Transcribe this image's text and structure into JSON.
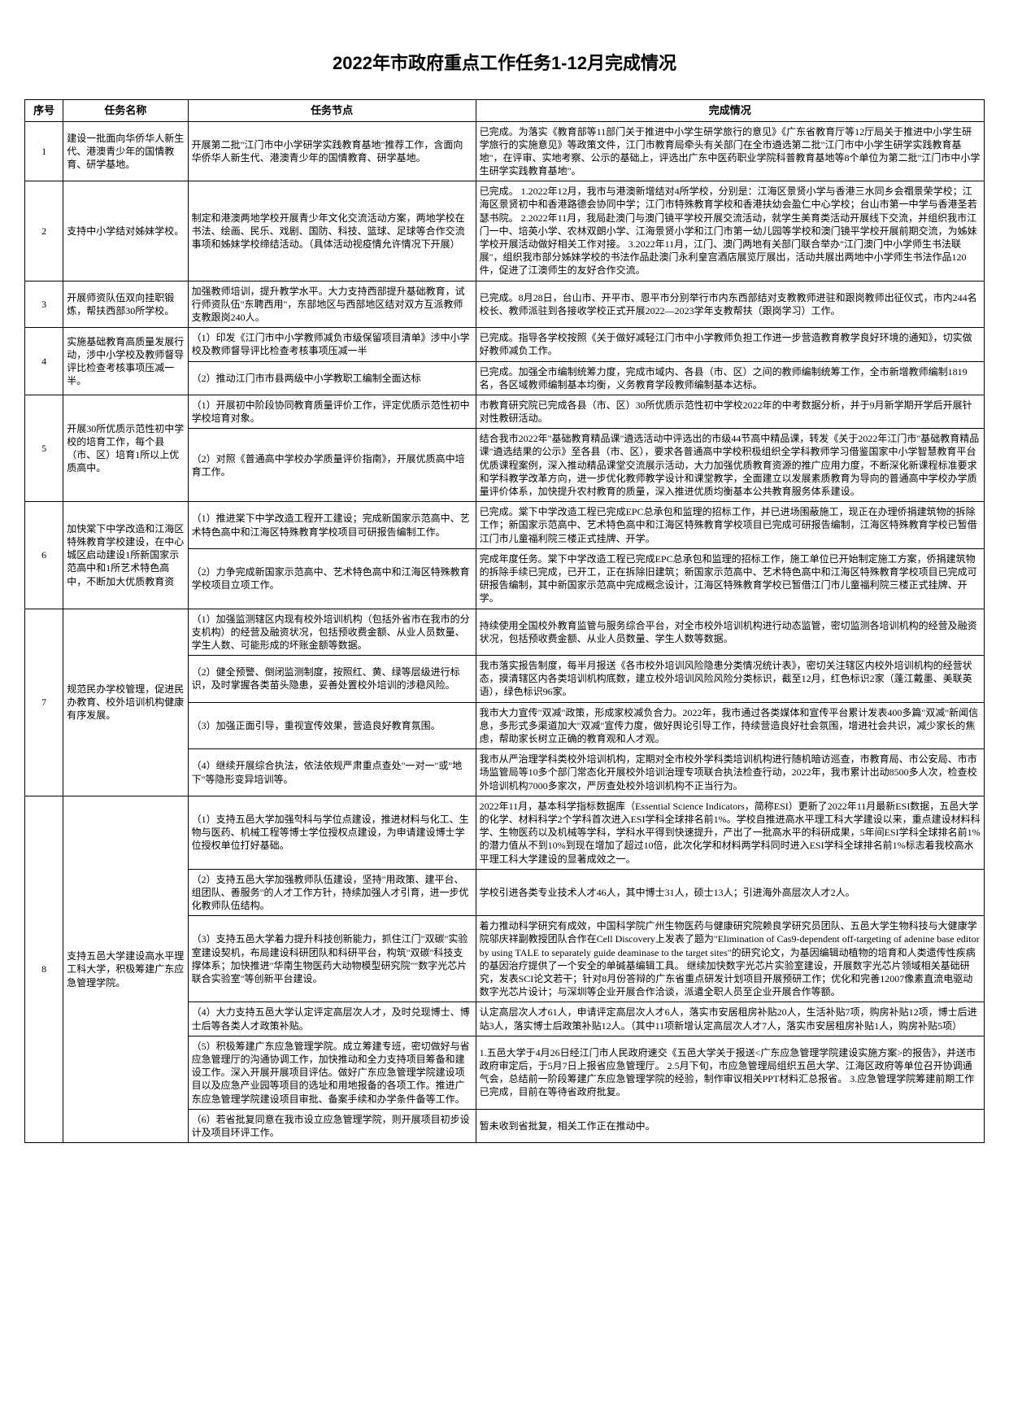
{
  "title": "2022年市政府重点工作任务1-12月完成情况",
  "headers": {
    "seq": "序号",
    "task": "任务名称",
    "node": "任务节点",
    "status": "完成情况"
  },
  "rows": [
    {
      "seq": "1",
      "task": "建设一批面向华侨华人新生代、港澳青少年的国情教育、研学基地。",
      "nodes": [
        {
          "node": "开展第二批\"江门市中小学研学实践教育基地\"推荐工作，含面向华侨华人新生代、港澳青少年的国情教育、研学基地。",
          "status": "已完成。为落实《教育部等11部门关于推进中小学生研学旅行的意见》《广东省教育厅等12厅局关于推进中小学生研学旅行的实施意见》等政策文件，江门市教育局牵头有关部门在全市遴选第二批\"江门市中小学生研学实践教育基地\"，在评审、实地考察、公示的基础上，评选出广东中医药职业学院科普教育基地等8个单位为第二批\"江门市中小学生研学实践教育基地\"。"
        }
      ]
    },
    {
      "seq": "2",
      "task": "支持中小学结对姊妹学校。",
      "nodes": [
        {
          "node": "制定和港澳两地学校开展青少年文化交流活动方案，两地学校在书法、绘画、民乐、戏剧、国防、科技、篮球、足球等合作交流事项和姊妹学校缔结活动。（具体活动视疫情允许情况下开展）",
          "status": "已完成。\n1.2022年12月，我市与港澳新增结对4所学校，分别是：江海区景贤小学与香港三水同乡会禤景荣学校；江海区景贤初中和香港路德会协同中学；江门市特殊教育学校和香港扶幼会盈仁中心学校；台山市第一中学与香港圣若瑟书院。\n2.2022年11月，我局赴澳门与澳门镜平学校开展交流活动，就学生美育类活动开展线下交流，并组织我市江门一中、培英小学、农林双朗小学、江海景贤小学和江门市第一幼儿园等学校和澳门镜平学校开展前期交流，为姊妹学校开展活动做好相关工作对接。\n3.2022年11月，江门、澳门两地有关部门联合举办\"江门澳门中小学师生书法联展\"，组织我市部分姊妹学校的书法作品赴澳门永利皇宫酒店展览厅展出，活动共展出两地中小学师生书法作品120件，促进了江澳师生的友好合作交流。"
        }
      ]
    },
    {
      "seq": "3",
      "task": "开展师资队伍双向挂职锻炼，帮扶西部30所学校。",
      "nodes": [
        {
          "node": "加强教师培训，提升教学水平。大力支持西部提升基础教育，试行师资队伍\"东聘西用\"，东部地区与西部地区结对双方互派教师支教跟岗240人。",
          "status": "已完成。8月28日，台山市、开平市、恩平市分别举行市内东西部结对支教教师进驻和跟岗教师出征仪式，市内244名校长、教师派驻到各接收学校正式开展2022—2023学年支教帮扶（跟岗学习）工作。"
        }
      ]
    },
    {
      "seq": "4",
      "task": "实施基础教育高质量发展行动，涉中小学校及教师督导评比检查考核事项压减一半。",
      "nodes": [
        {
          "node": "（1）印发《江门市中小学教师减负市级保留项目清单》涉中小学校及教师督导评比检查考核事项压减一半",
          "status": "已完成。指导各学校按照《关于做好减轻江门市中小学教师负担工作进一步营造教育教学良好环境的通知》，切实做好教师减负工作。"
        },
        {
          "node": "（2）推动江门市市县两级中小学教职工编制全面达标",
          "status": "已完成。加强全市编制统筹力度，完成市域内、各县（市、区）之间的教师编制统筹工作，全市新增教师编制1819名，各区域教师编制基本均衡，义务教育学段教师编制基本达标。"
        }
      ]
    },
    {
      "seq": "5",
      "task": "开展30所优质示范性初中学校的培育工作，每个县（市、区）培育1所以上优质高中。",
      "nodes": [
        {
          "node": "（1）开展初中阶段协同教育质量评价工作，评定优质示范性初中学校培育对象。",
          "status": "市教育研究院已完成各县（市、区）30所优质示范性初中学校2022年的中考数据分析，并于9月新学期开学后开展针对性教研活动。"
        },
        {
          "node": "（2）对照《普通高中学校办学质量评价指南》，开展优质高中培育工作。",
          "status": "结合我市2022年\"基础教育精品课\"遴选活动中评选出的市级44节高中精品课，转发《关于2022年江门市\"基础教育精品课\"遴选结果的公示》至各县（市、区），要求各普通高中学校积极组织全学科教师学习借鉴国家中小学智慧教育平台优质课程案例，深入推动精品课堂交流展示活动，大力加强优质教育资源的推广应用力度，不断深化新课程标准要求和学科教学改革方向，进一步优化教师教学设计和课堂教学，全面建立以发展素质教育为导向的普通高中学校办学质量评价体系，加快提升农村教育的质量，深入推进优质均衡基本公共教育服务体系建设。"
        }
      ]
    },
    {
      "seq": "6",
      "task": "加快棠下中学改造和江海区特殊教育学校建设，在中心城区启动建设1所新国家示范高中和1所艺术特色高中，不断加大优质教育资",
      "nodes": [
        {
          "node": "（1）推进棠下中学改造工程开工建设；完成新国家示范高中、艺术特色高中和江海区特殊教育学校项目可研报告编制工作。",
          "status": "已完成。棠下中学改造工程已完成EPC总承包和监理的招标工作，并已进场围蔽施工，现正在办理侨捐建筑物的拆除工作；新国家示范高中、艺术特色高中和江海区特殊教育学校项目已完成可研报告编制，江海区特殊教育学校已暂借江门市儿童福利院三楼正式挂牌、开学。"
        },
        {
          "node": "（2）力争完成新国家示范高中、艺术特色高中和江海区特殊教育学校项目立项工作。",
          "status": "完成年度任务。棠下中学改造工程已完成EPC总承包和监理的招标工作，施工单位已开始制定施工方案，侨捐建筑物的拆除手续已完成，已开工，正在拆除旧建筑；新国家示范高中、艺术特色高中和江海区特殊教育学校项目已完成可研报告编制，其中新国家示范高中完成概念设计，江海区特殊教育学校已暂借江门市儿童福利院三楼正式挂牌、开学。"
        }
      ]
    },
    {
      "seq": "7",
      "task": "规范民办学校管理，促进民办教育、校外培训机构健康有序发展。",
      "nodes": [
        {
          "node": "（1）加强监测辖区内现有校外培训机构（包括外省市在我市的分支机构）的经营及融资状况，包括预收费金额、从业人员数量、学生人数、可能形成的坏账金额等数据。",
          "status": "持续使用全国校外教育监管与服务综合平台，对全市校外培训机构进行动态监管，密切监测各培训机构的经营及融资状况，包括预收费金额、从业人员数量、学生人数等数据。"
        },
        {
          "node": "（2）健全预警、倒闭监测制度，按照红、黄、绿等层级进行标识，及时掌握各类苗头隐患，妥善处置校外培训的涉稳风险。",
          "status": "我市落实报告制度，每半月报送《各市校外培训风险隐患分类情况统计表》，密切关注辖区内校外培训机构的经营状态，摸清辖区内各类培训机构底数，建立校外培训风险风险分类标识，截至12月，红色标识2家（蓬江戴墨、美联英语），绿色标识96家。"
        },
        {
          "node": "（3）加强正面引导，重视宣传效果，营造良好教育氛围。",
          "status": "我市大力宣传\"双减\"政策，形成家校减负合力。2022年，我市通过各类媒体和宣传平台累计发表400多篇\"双减\"新闻信息，多形式多渠道加大\"双减\"宣传力度，做好舆论引导工作，持续营造良好社会氛围，增进社会共识，减少家长的焦虑，帮助家长树立正确的教育观和人才观。"
        },
        {
          "node": "（4）继续开展综合执法，依法依规严肃重点查处\"一对一\"或\"地下\"等隐形变异培训等。",
          "status": "我市从严治理学科类校外培训机构，定期对全市校外学科类培训机构进行随机暗访巡查，市教育局、市公安局、市市场监管局等10多个部门常态化开展校外培训治理专项联合执法检查行动，2022年，我市累计出动8500多人次，检查校外培训机构7000多家次，严厉查处校外培训机构不正当行为。"
        }
      ]
    },
    {
      "seq": "8",
      "task": "支持五邑大学建设高水平理工科大学，积极筹建广东应急管理学院。",
      "nodes": [
        {
          "node": "（1）支持五邑大学加强학科与学位点建设，推进材料与化工、生物与医药、机械工程等博士学位授权点建设，为申请建设博士学位授权单位打好基础。",
          "status": "2022年11月，基本科学指标数据库（Essential Science Indicators，简称ESI）更新了2022年11月最新ESI数据，五邑大学的化学、材料科学2个学科首次进入ESI学科全球排名前1%。学校自推进高水平理工科大学建设以来，重点建设材料科学、生物医药以及机械等学科，学科水平得到快速提升，产出了一批高水平的科研成果，5年间ESI学科全球排名前1%的潜力值从不到10%到现在增加了超过10倍，此次化学和材料两学科同时进入ESI学科全球排名前1%标志着我校高水平理工科大学建设的显著成效之一。"
        },
        {
          "node": "（2）支持五邑大学加强教师队伍建设，坚持\"用政策、建平台、组团队、善服务\"的人才工作方针，持续加强人才引育，进一步优化教师队伍结构。",
          "status": "学校引进各类专业技术人才46人，其中博士31人，硕士13人；引进海外高层次人才2人。"
        },
        {
          "node": "（3）支持五邑大学着力提升科技创新能力，抓住江门\"双碳\"实验室建设契机，布局建设科研团队和科研平台，构筑\"双碳\"科技支撑体系；加快推进\"华南生物医药大动物模型研究院\"\"数字光芯片联合实验室\"等创新平台建设。",
          "status": "着力推动科学研究有成效，中国科学院广州生物医药与健康研究院赖良学研究员团队、五邑大学生物科技与大健康学院邬庆祥副教授团队合作在Cell Discovery上发表了题为\"Elimination of Cas9-dependent off-targeting of adenine base editor by using TALE to separately guide deaminase to the target sites\"的研究论文，为基因编辑动植物的培育和人类遗传性疾病的基因治疗提供了一个安全的单碱基编辑工具。\n继续加快数字光芯片实验室建设，开展数字光芯片领域相关基础研究，发表SCI论文若干；针对8月份答辩的广东省重点研发计划项目开展预研工作；优化和完善12007像素直流电驱动数字光芯片设计；与深圳等企业开展合作洽谈，派遣全职人员至企业开展合作等额。"
        },
        {
          "node": "（4）大力支持五邑大学认定评定高层次人才，及时兑现博士、博士后等各类人才政策补贴。",
          "status": "认定高层次人才61人，申请评定高层次人才6人，落实市安居租房补贴20人，生活补贴7项，购房补贴12项，博士后进站3人，落实博士后政策补贴12人。（其中11项新增认定高层次人才7人，落实市安居租房补贴1人，购房补贴5项）"
        },
        {
          "node": "（5）积极筹建广东应急管理学院。成立筹建专班，密切做好与省应急管理厅的沟通协调工作，加快推动和全力支持项目筹备和建设工作。深入开展开展项目评估。做好广东应急管理学院建设项目以及应急产业园等项目的选址和用地报备的各项工作。推进广东应急管理学院建设项目审批、备案手续和办学条件备等工作。",
          "status": "1.五邑大学于4月26日经江门市人民政府速交《五邑大学关于报送<广东应急管理学院建设实施方案>的报告》，并送市政府审定后，于5月7日上报省应急管理厅。\n2.5月下旬，市应急管理局组织五邑大学、江海区政府等单位召开协调通气会，总结前一阶段筹建广东应急管理学院的经验，制作审议相关PPT材料汇总报省。\n3.应急管理学院筹建前期工作已完成，目前在等待省政府批复。"
        },
        {
          "node": "（6）若省批复同意在我市设立应急管理学院，则开展项目初步设计及项目环评工作。",
          "status": "暂未收到省批复，相关工作正在推动中。"
        }
      ]
    }
  ]
}
